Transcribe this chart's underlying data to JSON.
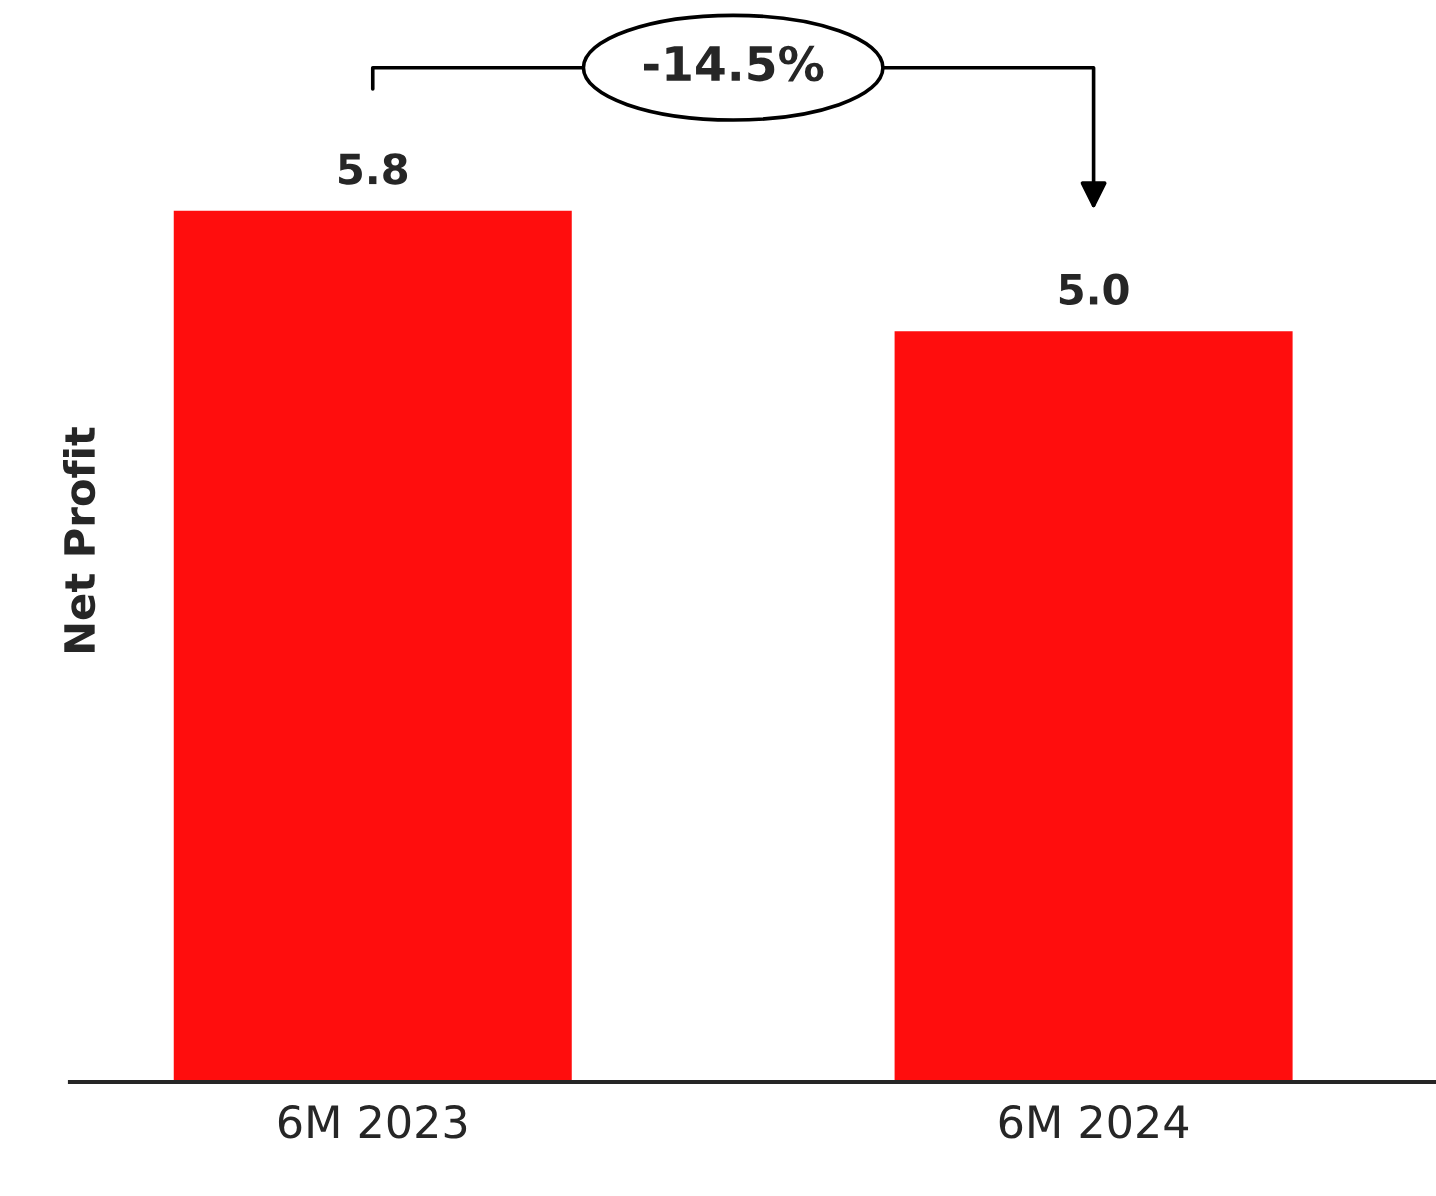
{
  "chart_data": {
    "type": "bar",
    "ylabel": "Net Profit",
    "categories": [
      "6M 2023",
      "6M 2024"
    ],
    "values": [
      5.8,
      5.0
    ],
    "value_labels": [
      "5.8",
      "5.0"
    ],
    "color": "#ff0d0d",
    "tick_labels": "x",
    "grid": false,
    "annotations": [
      "-14.5%"
    ]
  }
}
